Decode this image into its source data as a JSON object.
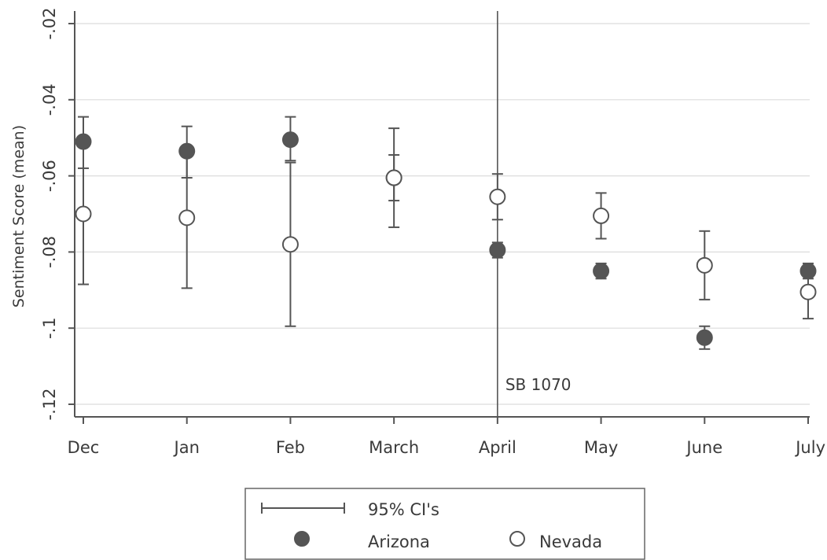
{
  "chart_data": {
    "type": "scatter",
    "title": "",
    "xlabel": "",
    "ylabel": "Sentiment Score (mean)",
    "categories": [
      "Dec",
      "Jan",
      "Feb",
      "March",
      "April",
      "May",
      "June",
      "July"
    ],
    "yticks": [
      -0.02,
      -0.04,
      -0.06,
      -0.08,
      -0.1,
      -0.12
    ],
    "ytick_labels": [
      "-.02",
      "-.04",
      "-.06",
      "-.08",
      "-.1",
      "-.12"
    ],
    "ylim": [
      -0.123,
      -0.017
    ],
    "grid": true,
    "series": [
      {
        "name": "Arizona",
        "marker": "filled-circle",
        "color": "#555555",
        "values": [
          -0.051,
          -0.0535,
          -0.0505,
          -0.0605,
          -0.0795,
          -0.085,
          -0.1025,
          -0.085
        ],
        "ci_low": [
          -0.058,
          -0.0605,
          -0.056,
          -0.0665,
          -0.0815,
          -0.087,
          -0.1055,
          -0.087
        ],
        "ci_high": [
          -0.0445,
          -0.047,
          -0.0445,
          -0.0545,
          -0.0775,
          -0.083,
          -0.0995,
          -0.083
        ]
      },
      {
        "name": "Nevada",
        "marker": "hollow-circle",
        "color": "#555555",
        "values": [
          -0.07,
          -0.071,
          -0.078,
          -0.0605,
          -0.0655,
          -0.0705,
          -0.0835,
          -0.0905
        ],
        "ci_low": [
          -0.0885,
          -0.0895,
          -0.0995,
          -0.0735,
          -0.0715,
          -0.0765,
          -0.0925,
          -0.0975
        ],
        "ci_high": [
          -0.0505,
          -0.0525,
          -0.0565,
          -0.0475,
          -0.0595,
          -0.0645,
          -0.0745,
          -0.0835
        ]
      }
    ],
    "annotations": [
      {
        "text": "SB 1070",
        "at_category": "April",
        "type": "vertical-line"
      }
    ],
    "legend": {
      "placement": "bottom",
      "ci_label": "95% CI's",
      "items": [
        "Arizona",
        "Nevada"
      ]
    }
  }
}
